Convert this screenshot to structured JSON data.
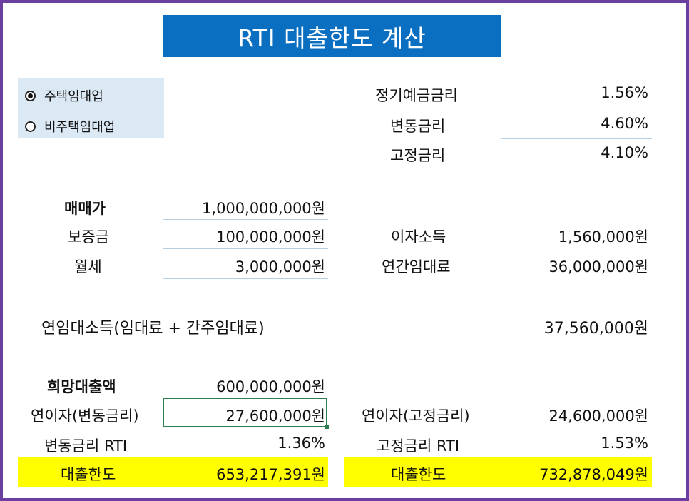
{
  "title": "RTI 대출한도 계산",
  "radio_options": [
    {
      "label": "주택임대업",
      "selected": true
    },
    {
      "label": "비주택임대업",
      "selected": false
    }
  ],
  "rates": {
    "deposit_rate_label": "정기예금금리",
    "deposit_rate": "1.56%",
    "variable_rate_label": "변동금리",
    "variable_rate": "4.60%",
    "fixed_rate_label": "고정금리",
    "fixed_rate": "4.10%"
  },
  "property": {
    "sale_price_label": "매매가",
    "sale_price": "1,000,000,000원",
    "deposit_label": "보증금",
    "deposit": "100,000,000원",
    "monthly_rent_label": "월세",
    "monthly_rent": "3,000,000원"
  },
  "income": {
    "interest_income_label": "이자소득",
    "interest_income": "1,560,000원",
    "annual_rent_label": "연간임대료",
    "annual_rent": "36,000,000원",
    "annual_rental_income_label": "연임대소득(임대료 + 간주임대료)",
    "annual_rental_income": "37,560,000원"
  },
  "loan": {
    "desired_loan_label": "희망대출액",
    "desired_loan": "600,000,000원",
    "var_interest_label": "연이자(변동금리)",
    "var_interest": "27,600,000원",
    "fixed_interest_label": "연이자(고정금리)",
    "fixed_interest": "24,600,000원",
    "var_rti_label": "변동금리 RTI",
    "var_rti": "1.36%",
    "fixed_rti_label": "고정금리 RTI",
    "fixed_rti": "1.53%",
    "var_limit_label": "대출한도",
    "var_limit": "653,217,391원",
    "fixed_limit_label": "대출한도",
    "fixed_limit": "732,878,049원"
  },
  "colors": {
    "title_bg": "#0b6fc1",
    "radio_panel_bg": "#dbe9f5",
    "highlight": "#ffff00",
    "frame_border": "#6b3fa0",
    "selected_cell_border": "#2e7d4f"
  }
}
